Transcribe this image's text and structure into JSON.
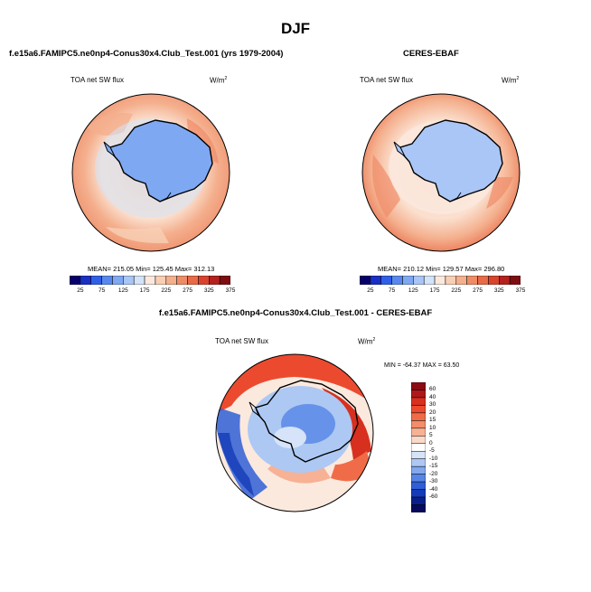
{
  "page_title": "DJF",
  "panels": {
    "model": {
      "title": "f.e15a6.FAMIPC5.ne0np4-Conus30x4.Club_Test.001 (yrs 1979-2004)",
      "var_label": "TOA net SW flux",
      "units": "W/m",
      "units_sup": "2",
      "stats": "MEAN= 215.05  Min= 125.45  Max= 312.13"
    },
    "obs": {
      "title": "CERES-EBAF",
      "var_label": "TOA net SW flux",
      "units": "W/m",
      "units_sup": "2",
      "stats": "MEAN= 210.12  Min= 129.57  Max= 296.80"
    },
    "diff": {
      "title": "f.e15a6.FAMIPC5.ne0np4-Conus30x4.Club_Test.001 - CERES-EBAF",
      "var_label": "TOA net SW flux",
      "units": "W/m",
      "units_sup": "2",
      "stats": "MIN = -64.37 MAX =  63.50"
    }
  },
  "colorbars": {
    "abs_labels": [
      "25",
      "75",
      "125",
      "175",
      "225",
      "275",
      "325",
      "375"
    ],
    "abs_colors": [
      "#08006a",
      "#1a2fc4",
      "#2f5fe6",
      "#5888ee",
      "#7fa8f3",
      "#a9c6f6",
      "#d3e3f8",
      "#fbe9de",
      "#f8cfb5",
      "#f4af8d",
      "#ef8c68",
      "#e96a47",
      "#d9432e",
      "#b3221e",
      "#7e0d12"
    ],
    "diff_labels": [
      "60",
      "40",
      "30",
      "20",
      "15",
      "10",
      "5",
      "0",
      "-5",
      "-10",
      "-15",
      "-20",
      "-30",
      "-40",
      "-60"
    ],
    "diff_colors": [
      "#8a0c12",
      "#b0171a",
      "#d7301f",
      "#ec4a2e",
      "#f06c48",
      "#f48d6a",
      "#f7b195",
      "#fbd9c8",
      "#ffffff",
      "#d6e3f8",
      "#adc8f3",
      "#82a8ee",
      "#5585e6",
      "#2f5fd7",
      "#153bb8",
      "#0a1f8c",
      "#070a5c"
    ]
  }
}
